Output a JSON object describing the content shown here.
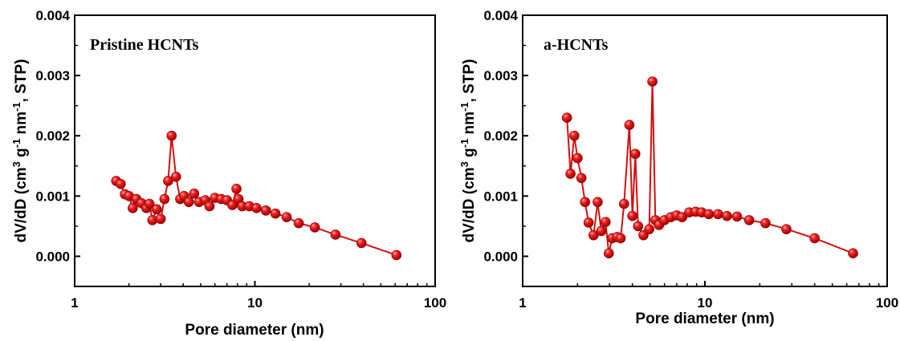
{
  "chart_data": [
    {
      "type": "line",
      "title": "Pristine HCNTs",
      "xlabel": "Pore diameter (nm)",
      "ylabel": "dV/dD (cm3 g-1 nm-1, STP)",
      "xscale": "log",
      "xlim": [
        1,
        100
      ],
      "ylim": [
        -0.0005,
        0.004
      ],
      "xticks": [
        "1",
        "10",
        "100"
      ],
      "yticks": [
        "0.000",
        "0.001",
        "0.002",
        "0.003",
        "0.004"
      ],
      "grid": false,
      "color": "#d01010",
      "series": [
        {
          "x": [
            1.7,
            1.8,
            1.9,
            2.0,
            2.1,
            2.2,
            2.35,
            2.5,
            2.6,
            2.7,
            2.85,
            3.0,
            3.15,
            3.3,
            3.45,
            3.65,
            3.85,
            4.05,
            4.3,
            4.6,
            4.9,
            5.3,
            5.6,
            6.0,
            6.5,
            7.0,
            7.5,
            7.9,
            8.1,
            8.5,
            9.3,
            10.2,
            11.5,
            13.0,
            15.0,
            17.5,
            21.5,
            28.0,
            39.0,
            61.0
          ],
          "y": [
            0.00125,
            0.0012,
            0.00103,
            0.001,
            0.0008,
            0.00095,
            0.00088,
            0.0008,
            0.00087,
            0.0006,
            0.00078,
            0.00062,
            0.00095,
            0.00125,
            0.002,
            0.00132,
            0.00095,
            0.001,
            0.0009,
            0.00104,
            0.0009,
            0.00093,
            0.00083,
            0.00097,
            0.00095,
            0.00093,
            0.00085,
            0.00112,
            0.00095,
            0.00083,
            0.00083,
            0.0008,
            0.00076,
            0.00071,
            0.00065,
            0.00055,
            0.00048,
            0.00036,
            0.00022,
            2e-05
          ]
        }
      ]
    },
    {
      "type": "line",
      "title": "a-HCNTs",
      "xlabel": "Pore diameter (nm)",
      "ylabel": "dV/dD (cm3 g-1 nm-1, STP)",
      "xscale": "log",
      "xlim": [
        1,
        100
      ],
      "ylim": [
        -0.0005,
        0.004
      ],
      "xticks": [
        "1",
        "10",
        "100"
      ],
      "yticks": [
        "0.000",
        "0.001",
        "0.002",
        "0.003",
        "0.004"
      ],
      "grid": false,
      "color": "#d01010",
      "series": [
        {
          "x": [
            1.75,
            1.83,
            1.92,
            2.0,
            2.1,
            2.2,
            2.3,
            2.45,
            2.58,
            2.7,
            2.85,
            2.97,
            3.1,
            3.3,
            3.45,
            3.6,
            3.85,
            4.0,
            4.15,
            4.3,
            4.6,
            4.95,
            5.15,
            5.35,
            5.6,
            6.0,
            6.5,
            7.0,
            7.5,
            8.2,
            8.9,
            9.6,
            10.5,
            11.8,
            13.2,
            15.0,
            17.5,
            21.5,
            28.0,
            40.0,
            65.0
          ],
          "y": [
            0.0023,
            0.00137,
            0.002,
            0.00163,
            0.0013,
            0.0009,
            0.00056,
            0.00035,
            0.0009,
            0.00042,
            0.00057,
            5e-05,
            0.0003,
            0.00032,
            0.0003,
            0.00087,
            0.00218,
            0.00067,
            0.0017,
            0.0005,
            0.00035,
            0.00045,
            0.0029,
            0.0006,
            0.00052,
            0.0006,
            0.00065,
            0.00068,
            0.00065,
            0.00073,
            0.00074,
            0.00073,
            0.0007,
            0.0007,
            0.00067,
            0.00066,
            0.0006,
            0.00055,
            0.00045,
            0.0003,
            5e-05
          ]
        }
      ]
    }
  ]
}
